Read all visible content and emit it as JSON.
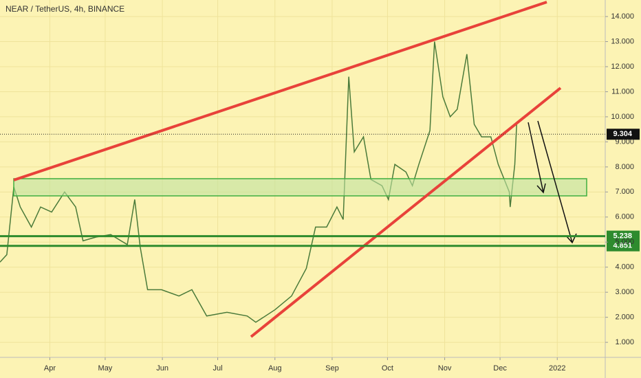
{
  "chart_data": {
    "type": "line",
    "title": "NEAR / TetherUS, 4h, BINANCE",
    "color": "#4a7a3a",
    "x": [
      64,
      67.7,
      71.5,
      75,
      81,
      86,
      92,
      99,
      105,
      109,
      116,
      124,
      133,
      137,
      140,
      144,
      151.5,
      161,
      168,
      176,
      187,
      198,
      202.6,
      213,
      222,
      230,
      235,
      241,
      246.6,
      250,
      253,
      256,
      261,
      265,
      271,
      274.5,
      278,
      284,
      287.5,
      291,
      297,
      299.5,
      304,
      308,
      311.8,
      317,
      321,
      325,
      330,
      334,
      340,
      340.5,
      343,
      344
    ],
    "values": [
      4.2,
      4.5,
      7.2,
      6.4,
      5.6,
      6.4,
      6.2,
      7.0,
      6.4,
      5.05,
      5.2,
      5.3,
      4.9,
      6.7,
      4.8,
      3.1,
      3.1,
      2.85,
      3.1,
      2.05,
      2.2,
      2.05,
      1.8,
      2.3,
      2.85,
      3.95,
      5.6,
      5.6,
      6.4,
      5.9,
      11.6,
      8.6,
      9.2,
      7.5,
      7.25,
      6.7,
      8.1,
      7.8,
      7.25,
      8.1,
      9.45,
      13.0,
      10.8,
      10.0,
      10.3,
      12.5,
      9.7,
      9.2,
      9.2,
      8.1,
      7.0,
      6.4,
      8.1,
      9.7
    ],
    "xlim": [
      64,
      392
    ],
    "xticks": [
      {
        "value": 91,
        "label": "Apr"
      },
      {
        "value": 121,
        "label": "May"
      },
      {
        "value": 152,
        "label": "Jun"
      },
      {
        "value": 182,
        "label": "Jul"
      },
      {
        "value": 213,
        "label": "Aug"
      },
      {
        "value": 244,
        "label": "Sep"
      },
      {
        "value": 274,
        "label": "Oct"
      },
      {
        "value": 305,
        "label": "Nov"
      },
      {
        "value": 335,
        "label": "Dec"
      },
      {
        "value": 366,
        "label": "2022"
      }
    ],
    "ylim": [
      0.4,
      14.66
    ],
    "yticks": [
      {
        "value": 1,
        "label": "1.000"
      },
      {
        "value": 2,
        "label": "2.000"
      },
      {
        "value": 3,
        "label": "3.000"
      },
      {
        "value": 4,
        "label": "4.000"
      },
      {
        "value": 5,
        "label": "5.000"
      },
      {
        "value": 6,
        "label": "6.000"
      },
      {
        "value": 7,
        "label": "7.000"
      },
      {
        "value": 8,
        "label": "8.000"
      },
      {
        "value": 9,
        "label": "9.000"
      },
      {
        "value": 10,
        "label": "10.000"
      },
      {
        "value": 11,
        "label": "11.000"
      },
      {
        "value": 12,
        "label": "12.000"
      },
      {
        "value": 13,
        "label": "13.000"
      },
      {
        "value": 14,
        "label": "14.000"
      }
    ],
    "levels": [
      5.238,
      4.851
    ],
    "level_color": "#2e8b2e",
    "last_price": 9.304
  }
}
